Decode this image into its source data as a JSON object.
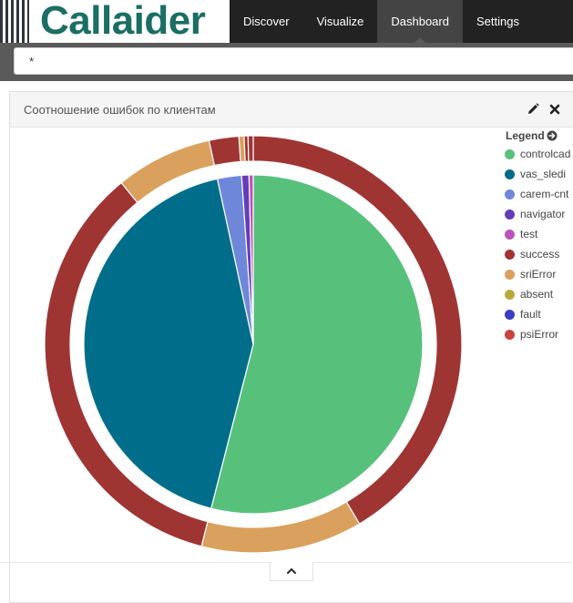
{
  "brand": {
    "logo_text": "Callaider",
    "logo_color": "#1a6e63"
  },
  "nav": {
    "items": [
      {
        "label": "Discover",
        "active": false
      },
      {
        "label": "Visualize",
        "active": false
      },
      {
        "label": "Dashboard",
        "active": true
      },
      {
        "label": "Settings",
        "active": false
      }
    ]
  },
  "query": {
    "value": "*"
  },
  "panel": {
    "title": "Соотношение ошибок по клиентам",
    "edit_icon": "pencil-icon",
    "close_icon": "close-icon"
  },
  "legend": {
    "title": "Legend",
    "toggle_icon": "arrow-circle-right-icon",
    "items": [
      {
        "label": "controlcad",
        "color": "#57c17b"
      },
      {
        "label": "vas_sledi",
        "color": "#006e8a"
      },
      {
        "label": "carem-cnt",
        "color": "#6f87d8"
      },
      {
        "label": "navigator",
        "color": "#663db8"
      },
      {
        "label": "test",
        "color": "#bc52bc"
      },
      {
        "label": "success",
        "color": "#9e3533"
      },
      {
        "label": "sriError",
        "color": "#daa05d"
      },
      {
        "label": "absent",
        "color": "#b9a93c"
      },
      {
        "label": "fault",
        "color": "#3b3ec0"
      },
      {
        "label": "psiError",
        "color": "#c8453e"
      }
    ]
  },
  "chart_data": {
    "type": "pie",
    "title": "Соотношение ошибок по клиентам",
    "donut_rings": 2,
    "inner_ring": {
      "level": "client",
      "slices": [
        {
          "name": "controlcad",
          "value": 54.0,
          "color": "#57c17b"
        },
        {
          "name": "vas_sledi",
          "value": 42.6,
          "color": "#006e8a"
        },
        {
          "name": "carem-cnt",
          "value": 2.3,
          "color": "#6f87d8"
        },
        {
          "name": "navigator",
          "value": 0.7,
          "color": "#663db8"
        },
        {
          "name": "test",
          "value": 0.4,
          "color": "#bc52bc"
        }
      ]
    },
    "outer_ring": {
      "level": "result",
      "slices": [
        {
          "parent": "controlcad",
          "name": "success",
          "value": 41.5,
          "color": "#9e3533"
        },
        {
          "parent": "controlcad",
          "name": "sriError",
          "value": 12.5,
          "color": "#daa05d"
        },
        {
          "parent": "vas_sledi",
          "name": "success",
          "value": 35.1,
          "color": "#9e3533"
        },
        {
          "parent": "vas_sledi",
          "name": "sriError",
          "value": 7.5,
          "color": "#daa05d"
        },
        {
          "parent": "carem-cnt",
          "name": "success",
          "value": 2.3,
          "color": "#9e3533"
        },
        {
          "parent": "navigator",
          "name": "sriError",
          "value": 0.4,
          "color": "#daa05d"
        },
        {
          "parent": "navigator",
          "name": "success",
          "value": 0.3,
          "color": "#9e3533"
        },
        {
          "parent": "test",
          "name": "success",
          "value": 0.4,
          "color": "#9e3533"
        }
      ]
    },
    "legend_position": "right"
  },
  "footer": {
    "collapse_icon": "chevron-up-icon"
  }
}
